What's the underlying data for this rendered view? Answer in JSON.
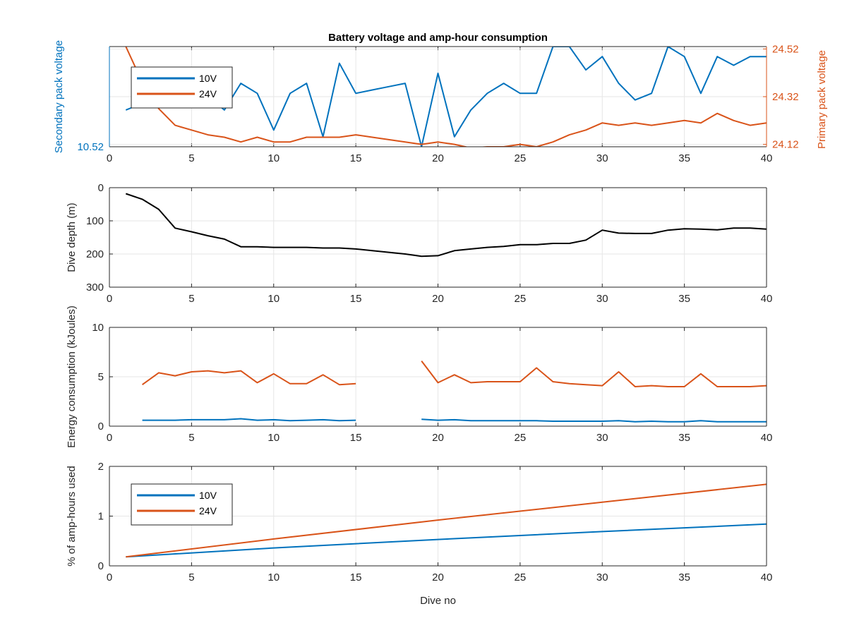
{
  "colors": {
    "blue": "#0072BD",
    "orange": "#D95319",
    "black": "#000000",
    "grid": "#e6e6e6",
    "axis": "#262626"
  },
  "chart_data": [
    {
      "type": "line",
      "title": "Battery voltage and amp-hour consumption",
      "xlabel": "",
      "ylabel_left": "Secondary pack voltage",
      "ylabel_right": "Primary pack voltage",
      "xlim": [
        0,
        40
      ],
      "xticks": [
        "0",
        "5",
        "10",
        "15",
        "20",
        "25",
        "30",
        "35",
        "40"
      ],
      "ylim_left": [
        10.52,
        10.535
      ],
      "yticks_left": [
        "10.52"
      ],
      "ylim_right": [
        24.11,
        24.53
      ],
      "yticks_right": [
        "24.12",
        "24.32",
        "24.52"
      ],
      "legend": {
        "position": "top-left",
        "entries": [
          "10V",
          "24V"
        ]
      },
      "grid": true,
      "series": [
        {
          "name": "10V",
          "axis": "left",
          "color": "blue",
          "x": [
            1,
            2,
            3,
            4,
            5,
            6,
            7,
            8,
            9,
            10,
            11,
            12,
            13,
            14,
            15,
            16,
            17,
            18,
            19,
            20,
            21,
            22,
            23,
            24,
            25,
            26,
            27,
            28,
            29,
            30,
            31,
            32,
            33,
            34,
            35,
            36,
            37,
            38,
            39,
            40
          ],
          "y": [
            10.5255,
            10.5265,
            10.528,
            10.529,
            10.5285,
            10.5275,
            10.5255,
            10.5295,
            10.528,
            10.5225,
            10.528,
            10.5295,
            10.5215,
            10.5325,
            10.528,
            10.5285,
            10.529,
            10.5295,
            10.52,
            10.531,
            10.5215,
            10.5255,
            10.528,
            10.5295,
            10.528,
            10.528,
            10.535,
            10.535,
            10.5315,
            10.5335,
            10.5295,
            10.527,
            10.528,
            10.535,
            10.5335,
            10.528,
            10.5335,
            10.5322,
            10.5335,
            10.5335
          ]
        },
        {
          "name": "24V",
          "axis": "right",
          "color": "orange",
          "x": [
            1,
            2,
            3,
            4,
            5,
            6,
            7,
            8,
            9,
            10,
            11,
            12,
            13,
            14,
            15,
            16,
            17,
            18,
            19,
            20,
            21,
            22,
            23,
            24,
            25,
            26,
            27,
            28,
            29,
            30,
            31,
            32,
            33,
            34,
            35,
            36,
            37,
            38,
            39,
            40
          ],
          "y": [
            24.53,
            24.38,
            24.27,
            24.2,
            24.18,
            24.16,
            24.15,
            24.13,
            24.15,
            24.13,
            24.13,
            24.15,
            24.15,
            24.15,
            24.16,
            24.15,
            24.14,
            24.13,
            24.12,
            24.13,
            24.12,
            24.105,
            24.11,
            24.11,
            24.12,
            24.11,
            24.13,
            24.16,
            24.18,
            24.21,
            24.2,
            24.21,
            24.2,
            24.21,
            24.22,
            24.21,
            24.25,
            24.22,
            24.2,
            24.21
          ]
        }
      ]
    },
    {
      "type": "line",
      "title": "",
      "xlabel": "",
      "ylabel": "Dive depth (m)",
      "xlim": [
        0,
        40
      ],
      "xticks": [
        "0",
        "5",
        "10",
        "15",
        "20",
        "25",
        "30",
        "35",
        "40"
      ],
      "ylim": [
        0,
        300
      ],
      "y_reversed": true,
      "yticks": [
        "0",
        "100",
        "200",
        "300"
      ],
      "grid": true,
      "series": [
        {
          "color": "black",
          "x": [
            1,
            2,
            3,
            4,
            5,
            6,
            7,
            8,
            9,
            10,
            11,
            12,
            13,
            14,
            15,
            16,
            17,
            18,
            19,
            20,
            21,
            22,
            23,
            24,
            25,
            26,
            27,
            28,
            29,
            30,
            31,
            32,
            33,
            34,
            35,
            36,
            37,
            38,
            39,
            40
          ],
          "y": [
            18,
            35,
            65,
            122,
            133,
            145,
            155,
            178,
            178,
            180,
            180,
            180,
            182,
            182,
            185,
            190,
            195,
            200,
            207,
            205,
            190,
            185,
            180,
            177,
            172,
            172,
            168,
            168,
            158,
            128,
            137,
            138,
            138,
            128,
            124,
            125,
            127,
            122,
            122,
            125
          ]
        }
      ]
    },
    {
      "type": "line",
      "title": "",
      "xlabel": "",
      "ylabel": "Energy consumption (kJoules)",
      "xlim": [
        0,
        40
      ],
      "xticks": [
        "0",
        "5",
        "10",
        "15",
        "20",
        "25",
        "30",
        "35",
        "40"
      ],
      "ylim": [
        0,
        10
      ],
      "yticks": [
        "0",
        "5",
        "10"
      ],
      "grid": true,
      "series": [
        {
          "name": "10V",
          "color": "blue",
          "segments": [
            {
              "x": [
                2,
                3,
                4,
                5,
                6,
                7,
                8,
                9,
                10,
                11,
                12,
                13,
                14,
                15
              ],
              "y": [
                0.6,
                0.6,
                0.6,
                0.65,
                0.65,
                0.65,
                0.75,
                0.6,
                0.65,
                0.55,
                0.6,
                0.65,
                0.55,
                0.6
              ]
            },
            {
              "x": [
                19,
                20,
                21,
                22,
                23,
                24,
                25,
                26,
                27,
                28,
                29,
                30,
                31,
                32,
                33,
                34,
                35,
                36,
                37,
                38,
                39,
                40
              ],
              "y": [
                0.7,
                0.6,
                0.65,
                0.55,
                0.55,
                0.55,
                0.55,
                0.55,
                0.5,
                0.5,
                0.5,
                0.5,
                0.55,
                0.45,
                0.5,
                0.45,
                0.45,
                0.55,
                0.45,
                0.45,
                0.45,
                0.45
              ]
            }
          ]
        },
        {
          "name": "24V",
          "color": "orange",
          "segments": [
            {
              "x": [
                2,
                3,
                4,
                5,
                6,
                7,
                8,
                9,
                10,
                11,
                12,
                13,
                14,
                15
              ],
              "y": [
                4.2,
                5.4,
                5.1,
                5.5,
                5.6,
                5.4,
                5.6,
                4.4,
                5.3,
                4.3,
                4.3,
                5.2,
                4.2,
                4.3
              ]
            },
            {
              "x": [
                19,
                20,
                21,
                22,
                23,
                24,
                25,
                26,
                27,
                28,
                29,
                30,
                31,
                32,
                33,
                34,
                35,
                36,
                37,
                38,
                39,
                40
              ],
              "y": [
                6.6,
                4.4,
                5.2,
                4.4,
                4.5,
                4.5,
                4.5,
                5.9,
                4.5,
                4.3,
                4.2,
                4.1,
                5.5,
                4.0,
                4.1,
                4.0,
                4.0,
                5.3,
                4.0,
                4.0,
                4.0,
                4.1
              ]
            }
          ]
        }
      ]
    },
    {
      "type": "line",
      "title": "",
      "xlabel": "Dive no",
      "ylabel": "% of amp-hours used",
      "xlim": [
        0,
        40
      ],
      "xticks": [
        "0",
        "5",
        "10",
        "15",
        "20",
        "25",
        "30",
        "35",
        "40"
      ],
      "ylim": [
        0,
        2
      ],
      "yticks": [
        "0",
        "1",
        "2"
      ],
      "legend": {
        "position": "top-left",
        "entries": [
          "10V",
          "24V"
        ]
      },
      "grid": true,
      "series": [
        {
          "name": "10V",
          "color": "blue",
          "x": [
            1,
            10,
            20,
            30,
            40
          ],
          "y": [
            0.18,
            0.36,
            0.53,
            0.69,
            0.84
          ]
        },
        {
          "name": "24V",
          "color": "orange",
          "x": [
            1,
            10,
            20,
            30,
            40
          ],
          "y": [
            0.18,
            0.54,
            0.92,
            1.28,
            1.64
          ]
        }
      ]
    }
  ]
}
